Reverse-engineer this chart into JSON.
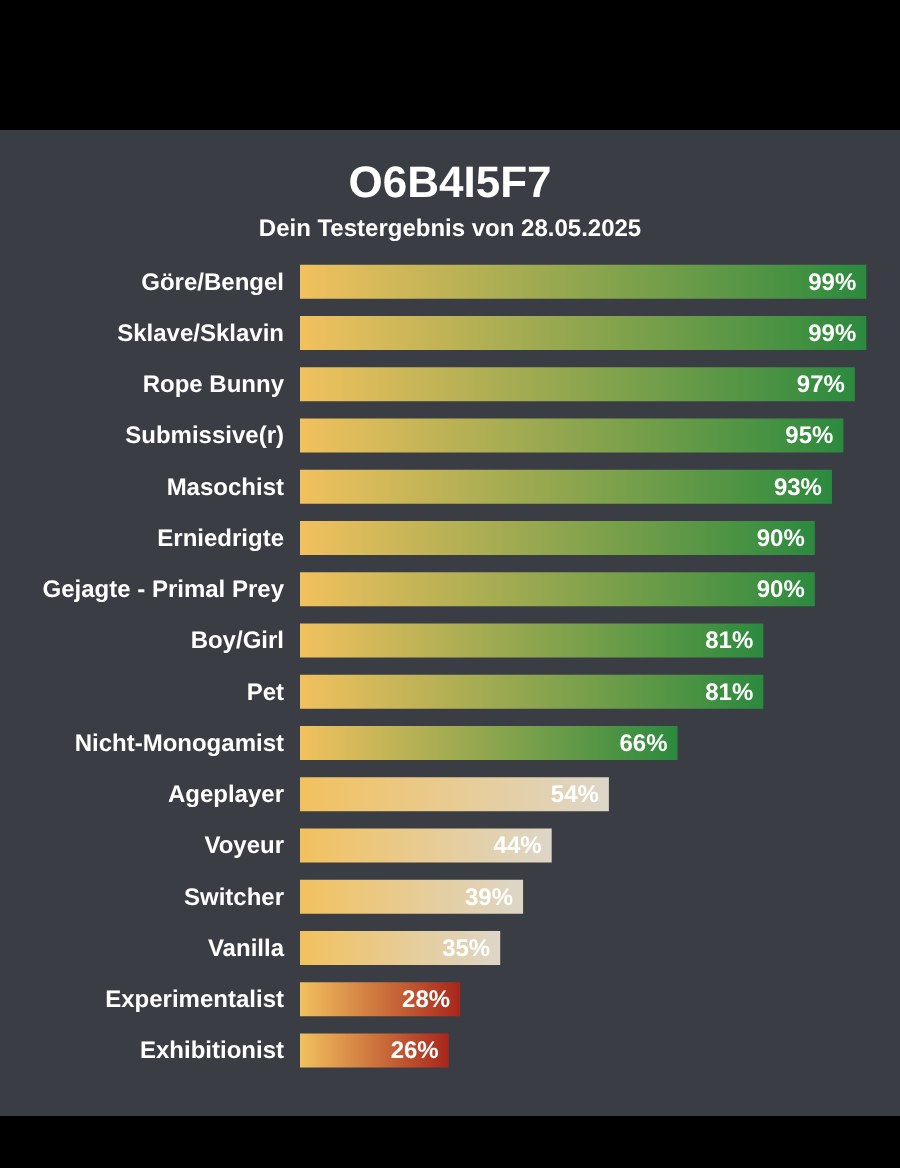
{
  "chart_data": {
    "type": "bar",
    "orientation": "horizontal",
    "title": "O6B4I5F7",
    "subtitle": "Dein Testergebnis von 28.05.2025",
    "categories": [
      "Göre/Bengel",
      "Sklave/Sklavin",
      "Rope Bunny",
      "Submissive(r)",
      "Masochist",
      "Erniedrigte",
      "Gejagte - Primal Prey",
      "Boy/Girl",
      "Pet",
      "Nicht-Monogamist",
      "Ageplayer",
      "Voyeur",
      "Switcher",
      "Vanilla",
      "Experimentalist",
      "Exhibitionist"
    ],
    "values": [
      99,
      99,
      97,
      95,
      93,
      90,
      90,
      81,
      81,
      66,
      54,
      44,
      39,
      35,
      28,
      26
    ],
    "value_labels": [
      "99%",
      "99%",
      "97%",
      "95%",
      "93%",
      "90%",
      "90%",
      "81%",
      "81%",
      "66%",
      "54%",
      "44%",
      "39%",
      "35%",
      "28%",
      "26%"
    ],
    "colors": [
      "#2b8a3e",
      "#2b8a3e",
      "#2b8a3e",
      "#2b8a3e",
      "#2b8a3e",
      "#2b8a3e",
      "#2b8a3e",
      "#2b8a3e",
      "#2b8a3e",
      "#2b8a3e",
      "#ddd6c8",
      "#ddd6c8",
      "#ddd6c8",
      "#ddd6c8",
      "#a8261c",
      "#a8261c"
    ]
  }
}
